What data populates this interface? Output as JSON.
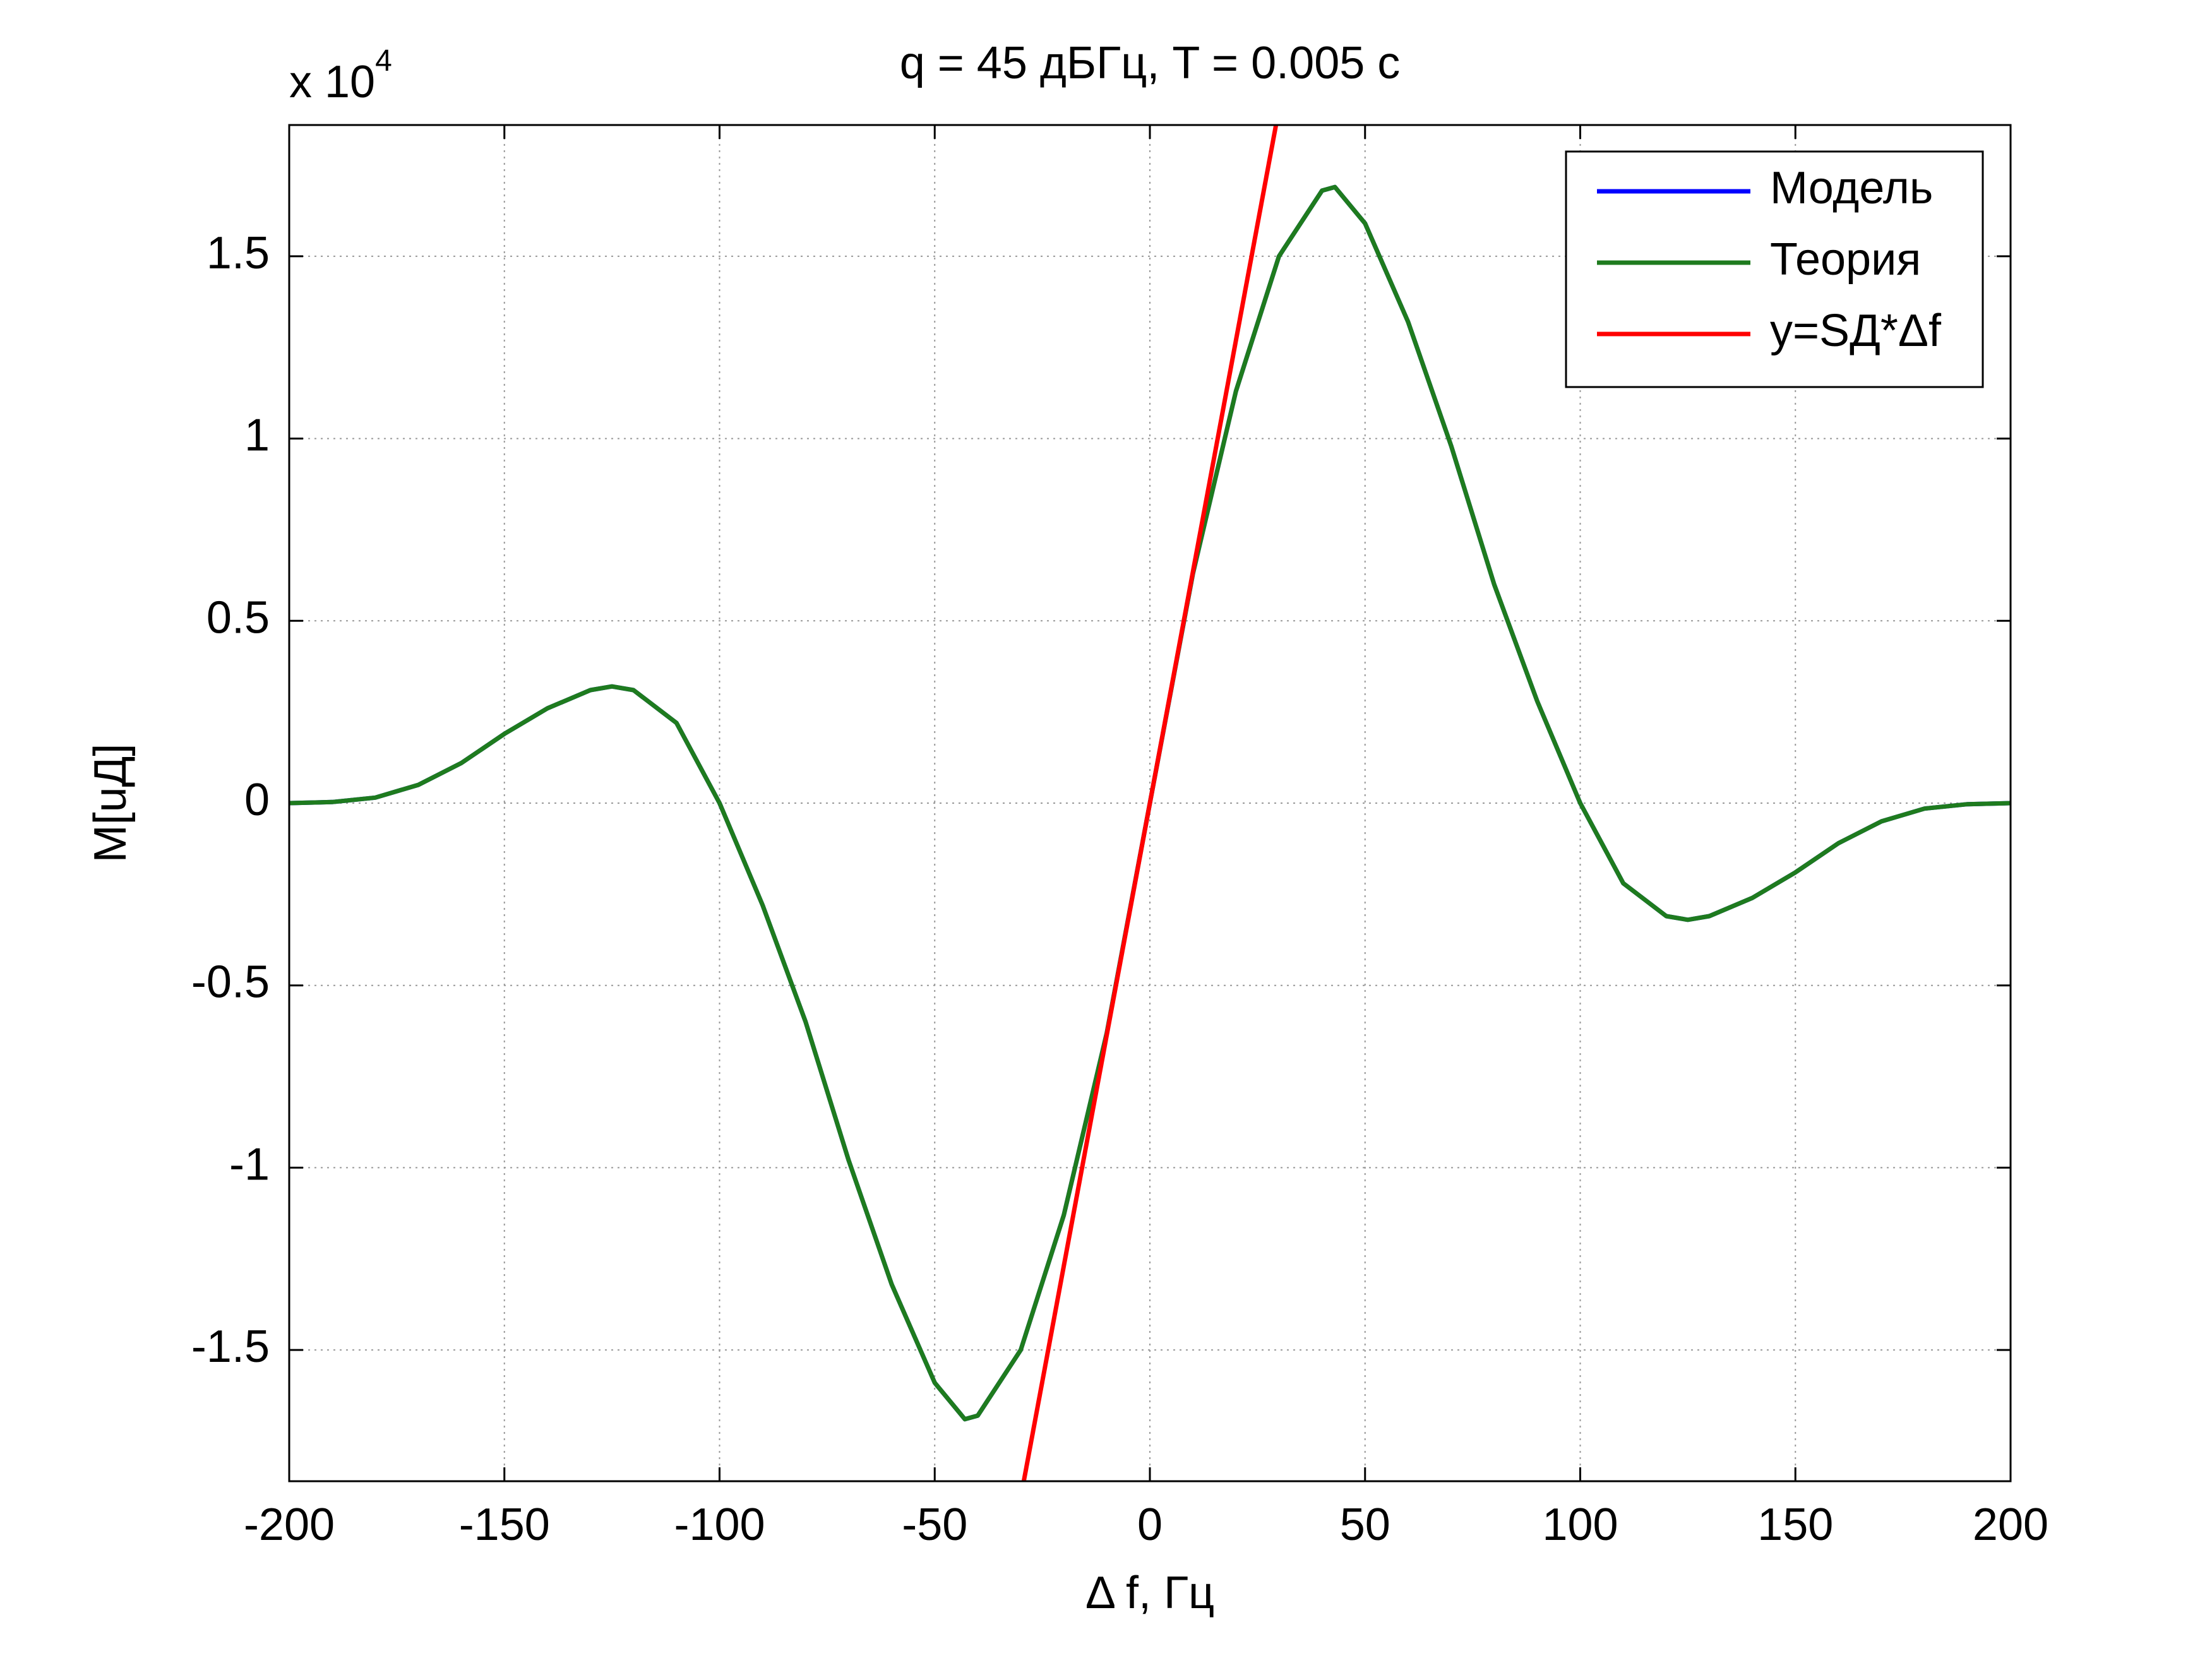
{
  "chart_data": {
    "type": "line",
    "title": "q = 45 дБГц, T = 0.005 с",
    "xlabel": "Δ f, Гц",
    "ylabel": "M[uД]",
    "multiplier": {
      "base": "x 10",
      "exponent": "4"
    },
    "x": [
      -200,
      -190,
      -180,
      -170,
      -160,
      -150,
      -140,
      -130,
      -125,
      -120,
      -110,
      -100,
      -90,
      -80,
      -70,
      -60,
      -50,
      -43,
      -40,
      -30,
      -20,
      -10,
      0,
      10,
      20,
      30,
      40,
      43,
      50,
      60,
      70,
      80,
      90,
      100,
      110,
      120,
      125,
      130,
      140,
      150,
      160,
      170,
      180,
      190,
      200
    ],
    "series": [
      {
        "name": "Модель",
        "color": "#0000ff",
        "values": [
          0,
          0.003,
          0.015,
          0.05,
          0.11,
          0.19,
          0.26,
          0.31,
          0.32,
          0.31,
          0.22,
          0,
          -0.28,
          -0.6,
          -0.98,
          -1.32,
          -1.59,
          -1.69,
          -1.68,
          -1.5,
          -1.13,
          -0.63,
          0,
          0.63,
          1.13,
          1.5,
          1.68,
          1.69,
          1.59,
          1.32,
          0.98,
          0.6,
          0.28,
          0,
          -0.22,
          -0.31,
          -0.32,
          -0.31,
          -0.26,
          -0.19,
          -0.11,
          -0.05,
          -0.015,
          -0.003,
          0
        ]
      },
      {
        "name": "Теория",
        "color": "#1e7b1e",
        "values": [
          0,
          0.003,
          0.015,
          0.05,
          0.11,
          0.19,
          0.26,
          0.31,
          0.32,
          0.31,
          0.22,
          0,
          -0.28,
          -0.6,
          -0.98,
          -1.32,
          -1.59,
          -1.69,
          -1.68,
          -1.5,
          -1.13,
          -0.63,
          0,
          0.63,
          1.13,
          1.5,
          1.68,
          1.69,
          1.59,
          1.32,
          0.98,
          0.6,
          0.28,
          0,
          -0.22,
          -0.31,
          -0.32,
          -0.31,
          -0.26,
          -0.19,
          -0.11,
          -0.05,
          -0.015,
          -0.003,
          0
        ]
      },
      {
        "name": "y=SД*Δf",
        "color": "#ff0000",
        "x": [
          -29.3,
          29.3
        ],
        "values": [
          -1.86,
          1.86
        ]
      }
    ],
    "xlim": [
      -200,
      200
    ],
    "xticks": [
      -200,
      -150,
      -100,
      -50,
      0,
      50,
      100,
      150,
      200
    ],
    "ylim": [
      -1.86,
      1.86
    ],
    "yticks": [
      -1.5,
      -1,
      -0.5,
      0,
      0.5,
      1,
      1.5
    ],
    "grid": true,
    "legend": "upper right"
  }
}
